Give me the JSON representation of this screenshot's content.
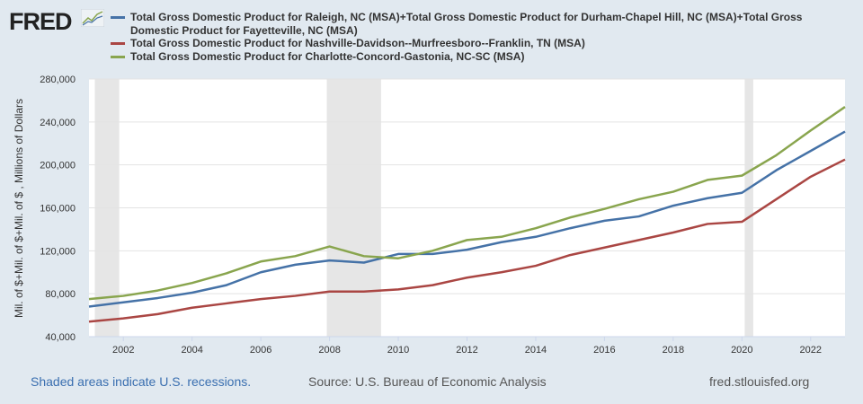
{
  "logo": {
    "text": "FRED"
  },
  "footer": {
    "recession_note": "Shaded areas indicate U.S. recessions.",
    "source": "Source: U.S. Bureau of Economic Analysis",
    "site": "fred.stlouisfed.org"
  },
  "colors": {
    "blue": "#4572a7",
    "red": "#aa4643",
    "green": "#89a54e",
    "recession": "#e6e6e6"
  },
  "chart_data": {
    "type": "line",
    "title": "",
    "ylabel": "Mil. of $+Mil. of $+Mil. of $ , Millions of Dollars",
    "xlabel": "",
    "ylim": [
      40000,
      280000
    ],
    "xlim": [
      2001,
      2023
    ],
    "grid": true,
    "legend_position": "top",
    "yticks": [
      40000,
      80000,
      120000,
      160000,
      200000,
      240000,
      280000
    ],
    "ytick_labels": [
      "40,000",
      "80,000",
      "120,000",
      "160,000",
      "200,000",
      "240,000",
      "280,000"
    ],
    "xticks": [
      2002,
      2004,
      2006,
      2008,
      2010,
      2012,
      2014,
      2016,
      2018,
      2020,
      2022
    ],
    "xtick_labels": [
      "2002",
      "2004",
      "2006",
      "2008",
      "2010",
      "2012",
      "2014",
      "2016",
      "2018",
      "2020",
      "2022"
    ],
    "recessions": [
      [
        2001.17,
        2001.88
      ],
      [
        2007.92,
        2009.5
      ],
      [
        2020.08,
        2020.33
      ]
    ],
    "x": [
      2001,
      2002,
      2003,
      2004,
      2005,
      2006,
      2007,
      2008,
      2009,
      2010,
      2011,
      2012,
      2013,
      2014,
      2015,
      2016,
      2017,
      2018,
      2019,
      2020,
      2021,
      2022,
      2023
    ],
    "series": [
      {
        "name": "Total Gross Domestic Product for Raleigh, NC (MSA)+Total Gross Domestic Product for Durham-Chapel Hill, NC (MSA)+Total Gross Domestic Product for Fayetteville, NC (MSA)",
        "color": "#4572a7",
        "values": [
          68000,
          72000,
          76000,
          81000,
          88000,
          100000,
          107000,
          111000,
          109000,
          117000,
          117000,
          121000,
          128000,
          133000,
          141000,
          148000,
          152000,
          162000,
          169000,
          174000,
          195000,
          213000,
          231000
        ]
      },
      {
        "name": "Total Gross Domestic Product for Nashville-Davidson--Murfreesboro--Franklin, TN (MSA)",
        "color": "#aa4643",
        "values": [
          54000,
          57000,
          61000,
          67000,
          71000,
          75000,
          78000,
          82000,
          82000,
          84000,
          88000,
          95000,
          100000,
          106000,
          116000,
          123000,
          130000,
          137000,
          145000,
          147000,
          168000,
          189000,
          205000
        ]
      },
      {
        "name": "Total Gross Domestic Product for Charlotte-Concord-Gastonia, NC-SC (MSA)",
        "color": "#89a54e",
        "values": [
          75000,
          78000,
          83000,
          90000,
          99000,
          110000,
          115000,
          124000,
          115000,
          113000,
          120000,
          130000,
          133000,
          141000,
          151000,
          159000,
          168000,
          175000,
          186000,
          190000,
          209000,
          232000,
          254000
        ]
      }
    ]
  }
}
